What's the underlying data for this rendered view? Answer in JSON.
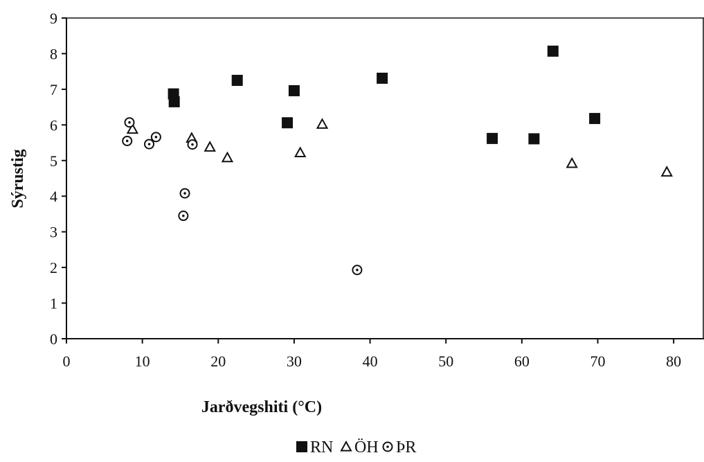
{
  "chart_data": {
    "type": "scatter",
    "title": "",
    "xlabel": "Jarðvegshiti (°C)",
    "ylabel": "Sýrustig",
    "xlim": [
      0,
      84
    ],
    "ylim": [
      0,
      9
    ],
    "x_ticks": [
      0,
      10,
      20,
      30,
      40,
      50,
      60,
      70,
      80
    ],
    "y_ticks": [
      0,
      1,
      2,
      3,
      4,
      5,
      6,
      7,
      8,
      9
    ],
    "grid": false,
    "legend_position": "bottom-center",
    "series": [
      {
        "name": "RN",
        "marker": "filled-square",
        "color": "#111111",
        "points": [
          {
            "x": 14.1,
            "y": 6.87
          },
          {
            "x": 14.2,
            "y": 6.65
          },
          {
            "x": 22.5,
            "y": 7.25
          },
          {
            "x": 29.1,
            "y": 6.06
          },
          {
            "x": 30.0,
            "y": 6.96
          },
          {
            "x": 41.6,
            "y": 7.31
          },
          {
            "x": 56.1,
            "y": 5.62
          },
          {
            "x": 61.6,
            "y": 5.61
          },
          {
            "x": 64.1,
            "y": 8.07
          },
          {
            "x": 69.6,
            "y": 6.18
          }
        ]
      },
      {
        "name": "ÖH",
        "marker": "open-triangle",
        "color": "#111111",
        "points": [
          {
            "x": 8.7,
            "y": 5.88
          },
          {
            "x": 16.5,
            "y": 5.63
          },
          {
            "x": 18.9,
            "y": 5.38
          },
          {
            "x": 21.2,
            "y": 5.08
          },
          {
            "x": 30.8,
            "y": 5.22
          },
          {
            "x": 33.7,
            "y": 6.02
          },
          {
            "x": 66.6,
            "y": 4.92
          },
          {
            "x": 79.1,
            "y": 4.68
          }
        ]
      },
      {
        "name": "ÞR",
        "marker": "open-circle",
        "color": "#111111",
        "points": [
          {
            "x": 8.0,
            "y": 5.55
          },
          {
            "x": 8.3,
            "y": 6.07
          },
          {
            "x": 10.9,
            "y": 5.46
          },
          {
            "x": 11.8,
            "y": 5.66
          },
          {
            "x": 15.4,
            "y": 3.45
          },
          {
            "x": 15.6,
            "y": 4.08
          },
          {
            "x": 16.6,
            "y": 5.45
          },
          {
            "x": 38.3,
            "y": 1.93
          }
        ]
      }
    ]
  }
}
